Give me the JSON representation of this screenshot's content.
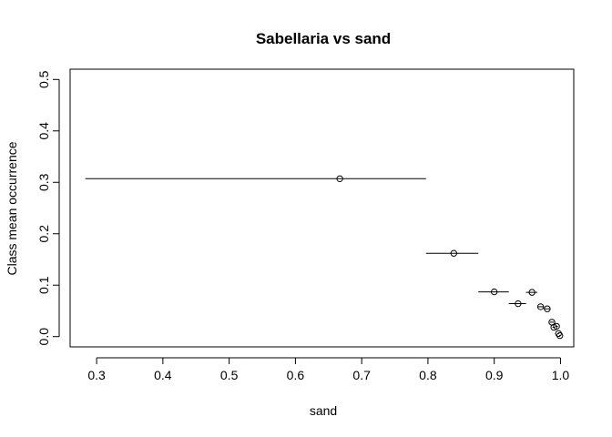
{
  "chart_data": {
    "type": "scatter",
    "title": "Sabellaria vs sand",
    "xlabel": "sand",
    "ylabel": "Class mean occurrence",
    "xlim": [
      0.26,
      1.02
    ],
    "ylim": [
      -0.02,
      0.52
    ],
    "xticks": [
      0.3,
      0.4,
      0.5,
      0.6,
      0.7,
      0.8,
      0.9,
      1.0
    ],
    "xtick_labels": [
      "0.3",
      "0.4",
      "0.5",
      "0.6",
      "0.7",
      "0.8",
      "0.9",
      "1.0"
    ],
    "yticks": [
      0.0,
      0.1,
      0.2,
      0.3,
      0.4,
      0.5
    ],
    "ytick_labels": [
      "0.0",
      "0.1",
      "0.2",
      "0.3",
      "0.4",
      "0.5"
    ],
    "grid": false,
    "legend": "none",
    "points": [
      {
        "x": 0.667,
        "y": 0.307,
        "xmin": 0.283,
        "xmax": 0.797
      },
      {
        "x": 0.839,
        "y": 0.162,
        "xmin": 0.797,
        "xmax": 0.876
      },
      {
        "x": 0.9,
        "y": 0.087,
        "xmin": 0.876,
        "xmax": 0.922
      },
      {
        "x": 0.936,
        "y": 0.064,
        "xmin": 0.922,
        "xmax": 0.948
      },
      {
        "x": 0.957,
        "y": 0.086,
        "xmin": 0.948,
        "xmax": 0.965
      },
      {
        "x": 0.97,
        "y": 0.058,
        "xmin": 0.965,
        "xmax": 0.975
      },
      {
        "x": 0.98,
        "y": 0.054,
        "xmin": 0.975,
        "xmax": 0.984
      },
      {
        "x": 0.987,
        "y": 0.028,
        "xmin": 0.984,
        "xmax": 0.99
      },
      {
        "x": 0.99,
        "y": 0.018,
        "xmin": 0.988,
        "xmax": 0.992
      },
      {
        "x": 0.994,
        "y": 0.02,
        "xmin": 0.992,
        "xmax": 0.996
      },
      {
        "x": 0.997,
        "y": 0.006,
        "xmin": 0.996,
        "xmax": 0.998
      },
      {
        "x": 0.999,
        "y": 0.002,
        "xmin": 0.998,
        "xmax": 1.0
      }
    ]
  }
}
